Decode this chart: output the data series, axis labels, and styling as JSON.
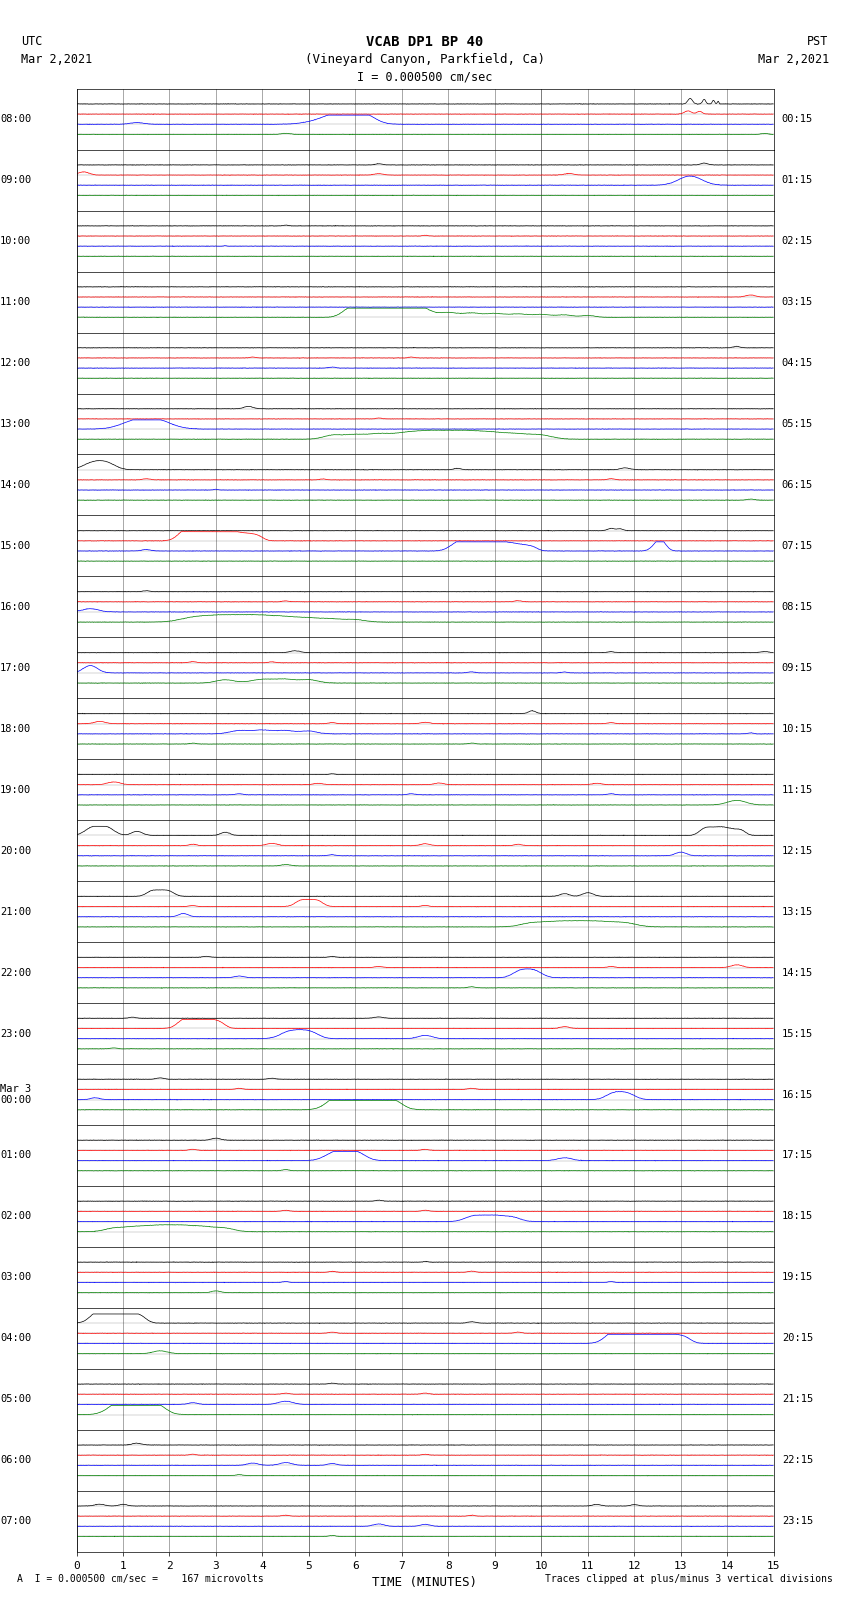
{
  "title_line1": "VCAB DP1 BP 40",
  "title_line2": "(Vineyard Canyon, Parkfield, Ca)",
  "scale_label": "I = 0.000500 cm/sec",
  "utc_label": "UTC",
  "utc_date": "Mar 2,2021",
  "pst_label": "PST",
  "pst_date": "Mar 2,2021",
  "xlabel": "TIME (MINUTES)",
  "bottom_left": "A  I = 0.000500 cm/sec =    167 microvolts",
  "bottom_right": "Traces clipped at plus/minus 3 vertical divisions",
  "num_rows": 24,
  "xlim": [
    0,
    15
  ],
  "xticks": [
    0,
    1,
    2,
    3,
    4,
    5,
    6,
    7,
    8,
    9,
    10,
    11,
    12,
    13,
    14,
    15
  ],
  "row_labels_left": [
    "08:00",
    "09:00",
    "10:00",
    "11:00",
    "12:00",
    "13:00",
    "14:00",
    "15:00",
    "16:00",
    "17:00",
    "18:00",
    "19:00",
    "20:00",
    "21:00",
    "22:00",
    "23:00",
    "Mar 3\n00:00",
    "01:00",
    "02:00",
    "03:00",
    "04:00",
    "05:00",
    "06:00",
    "07:00"
  ],
  "row_labels_right": [
    "00:15",
    "01:15",
    "02:15",
    "03:15",
    "04:15",
    "05:15",
    "06:15",
    "07:15",
    "08:15",
    "09:15",
    "10:15",
    "11:15",
    "12:15",
    "13:15",
    "14:15",
    "15:15",
    "16:15",
    "17:15",
    "18:15",
    "19:15",
    "20:15",
    "21:15",
    "22:15",
    "23:15"
  ],
  "background_color": "#ffffff",
  "fig_width": 8.5,
  "fig_height": 16.13,
  "dpi": 100,
  "n_channels": 4,
  "channel_colors": [
    "#000000",
    "#ff0000",
    "#0000ff",
    "#008000"
  ],
  "channel_offsets": [
    0.75,
    0.25,
    -0.25,
    -0.75
  ]
}
